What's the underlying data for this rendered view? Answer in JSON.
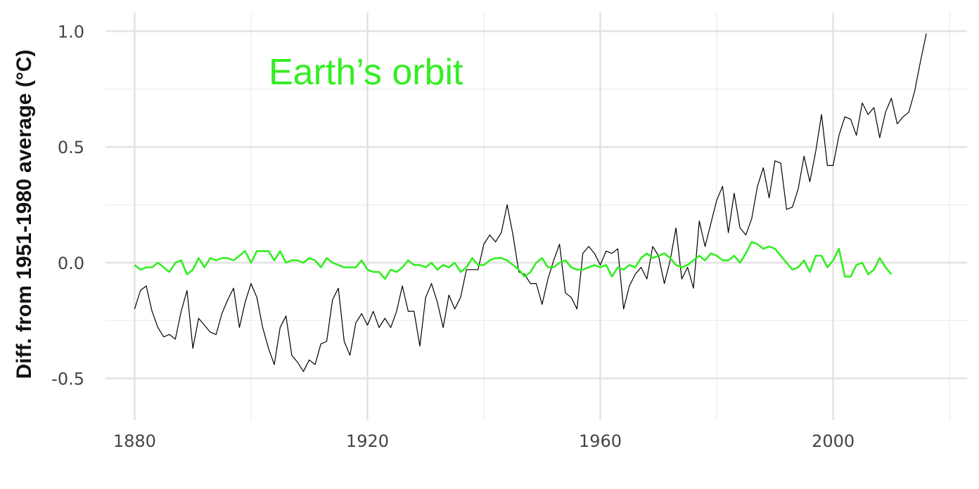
{
  "chart_data": {
    "type": "line",
    "title": "",
    "xlabel": "",
    "ylabel": "Diff. from 1951-1980 average (°C)",
    "xlim": [
      1875,
      2023
    ],
    "ylim": [
      -0.68,
      1.08
    ],
    "x_ticks": [
      1880,
      1920,
      1960,
      2000
    ],
    "x_tick_labels": [
      "1880",
      "1920",
      "1960",
      "2000"
    ],
    "x_minor_ticks": [
      1900,
      1940,
      1980,
      2020
    ],
    "y_ticks": [
      1.0,
      0.5,
      0.0,
      -0.5
    ],
    "y_tick_labels": [
      "1.0",
      "0.5",
      "0.0",
      "-0.5"
    ],
    "y_minor_ticks": [
      0.75,
      0.25,
      -0.25
    ],
    "grid": true,
    "annotation": {
      "text": "Earth’s orbit",
      "color": "#33ee22"
    },
    "series": [
      {
        "color": "#000000",
        "x_start": 1880,
        "x_step": 1,
        "values": [
          -0.2,
          -0.12,
          -0.1,
          -0.21,
          -0.28,
          -0.32,
          -0.31,
          -0.33,
          -0.21,
          -0.12,
          -0.37,
          -0.24,
          -0.27,
          -0.3,
          -0.31,
          -0.22,
          -0.16,
          -0.11,
          -0.28,
          -0.17,
          -0.09,
          -0.15,
          -0.28,
          -0.37,
          -0.44,
          -0.28,
          -0.23,
          -0.4,
          -0.43,
          -0.47,
          -0.42,
          -0.44,
          -0.35,
          -0.34,
          -0.16,
          -0.11,
          -0.34,
          -0.4,
          -0.26,
          -0.22,
          -0.27,
          -0.21,
          -0.28,
          -0.24,
          -0.28,
          -0.21,
          -0.1,
          -0.21,
          -0.21,
          -0.36,
          -0.15,
          -0.09,
          -0.17,
          -0.28,
          -0.14,
          -0.2,
          -0.15,
          -0.03,
          -0.03,
          -0.03,
          0.08,
          0.12,
          0.09,
          0.13,
          0.25,
          0.12,
          -0.04,
          -0.05,
          -0.09,
          -0.09,
          -0.18,
          -0.07,
          0.01,
          0.08,
          -0.13,
          -0.15,
          -0.2,
          0.04,
          0.07,
          0.04,
          -0.01,
          0.05,
          0.04,
          0.06,
          -0.2,
          -0.1,
          -0.05,
          -0.02,
          -0.07,
          0.07,
          0.03,
          -0.09,
          0.01,
          0.15,
          -0.07,
          -0.02,
          -0.11,
          0.18,
          0.07,
          0.17,
          0.27,
          0.33,
          0.13,
          0.3,
          0.15,
          0.12,
          0.19,
          0.33,
          0.41,
          0.28,
          0.44,
          0.43,
          0.23,
          0.24,
          0.32,
          0.46,
          0.35,
          0.48,
          0.64,
          0.42,
          0.42,
          0.55,
          0.63,
          0.62,
          0.55,
          0.69,
          0.64,
          0.67,
          0.54,
          0.65,
          0.71,
          0.6,
          0.63,
          0.65,
          0.74,
          0.87,
          0.99
        ]
      },
      {
        "color": "#33ee22",
        "x_start": 1880,
        "x_step": 1,
        "values": [
          -0.01,
          -0.03,
          -0.02,
          -0.02,
          0.0,
          -0.02,
          -0.04,
          0.0,
          0.01,
          -0.05,
          -0.03,
          0.02,
          -0.02,
          0.02,
          0.01,
          0.02,
          0.02,
          0.01,
          0.03,
          0.05,
          0.0,
          0.05,
          0.05,
          0.05,
          0.01,
          0.05,
          0.0,
          0.01,
          0.01,
          0.0,
          0.02,
          0.01,
          -0.02,
          0.02,
          0.0,
          -0.01,
          -0.02,
          -0.02,
          -0.02,
          0.01,
          -0.03,
          -0.04,
          -0.04,
          -0.07,
          -0.03,
          -0.04,
          -0.02,
          0.01,
          -0.01,
          -0.01,
          -0.02,
          0.0,
          -0.03,
          -0.01,
          -0.02,
          0.0,
          -0.04,
          -0.02,
          0.02,
          -0.01,
          -0.01,
          0.01,
          0.02,
          0.02,
          0.01,
          -0.01,
          -0.03,
          -0.06,
          -0.04,
          0.0,
          0.02,
          -0.02,
          -0.02,
          0.0,
          0.01,
          -0.02,
          -0.03,
          -0.03,
          -0.02,
          -0.01,
          -0.02,
          -0.01,
          -0.06,
          -0.02,
          -0.03,
          -0.01,
          -0.02,
          0.02,
          0.04,
          0.02,
          0.03,
          0.04,
          0.02,
          -0.01,
          -0.02,
          -0.01,
          0.01,
          0.03,
          0.01,
          0.04,
          0.03,
          0.01,
          0.01,
          0.03,
          0.0,
          0.04,
          0.09,
          0.08,
          0.06,
          0.07,
          0.06,
          0.03,
          0.0,
          -0.03,
          -0.02,
          0.01,
          -0.04,
          0.03,
          0.03,
          -0.02,
          0.01,
          0.06,
          -0.06,
          -0.06,
          -0.01,
          0.0,
          -0.05,
          -0.03,
          0.02,
          -0.02,
          -0.05
        ]
      }
    ]
  }
}
